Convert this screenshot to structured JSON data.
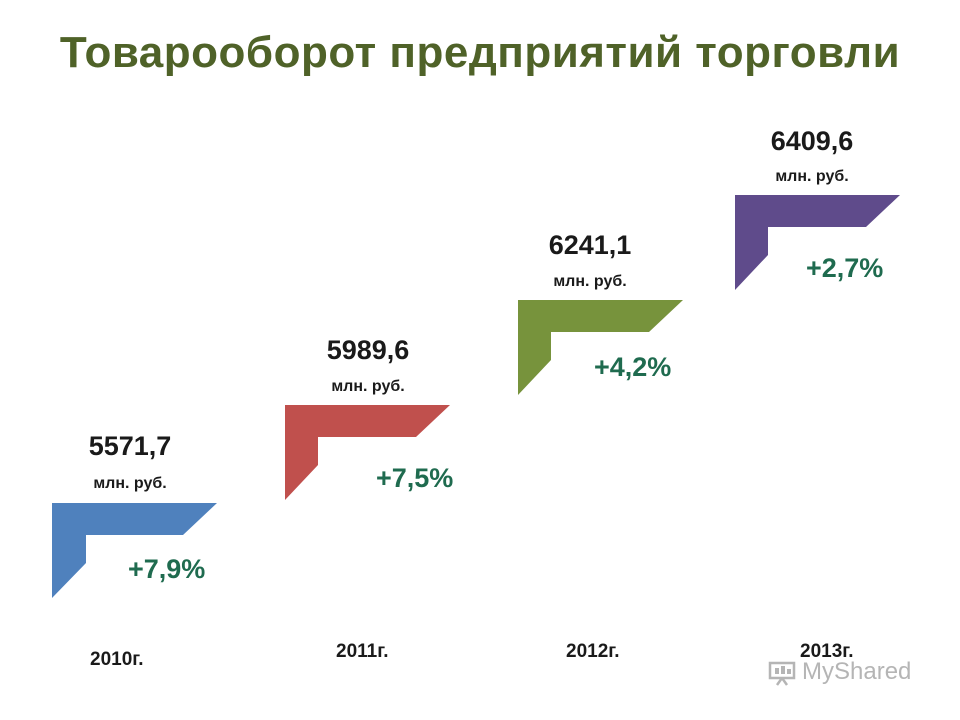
{
  "title": "Товарооборот предприятий торговли",
  "chart_data": {
    "type": "bar",
    "title": "Товарооборот предприятий торговли",
    "categories": [
      "2010г.",
      "2011г.",
      "2012г.",
      "2013г."
    ],
    "values": [
      5571.7,
      5989.6,
      6241.1,
      6409.6
    ],
    "value_labels": [
      "5571,7",
      "5989,6",
      "6241,1",
      "6409,6"
    ],
    "unit": "млн. руб.",
    "growth_labels": [
      "+7,9%",
      "+7,5%",
      "+4,2%",
      "+2,7%"
    ],
    "growth_values": [
      7.9,
      7.5,
      4.2,
      2.7
    ],
    "colors": [
      "#4f81bd",
      "#c0504d",
      "#77933c",
      "#5f4b8b"
    ],
    "legend": "none",
    "grid": false
  },
  "watermark": {
    "text": "MyShared",
    "icon": "presentation-board-icon"
  }
}
